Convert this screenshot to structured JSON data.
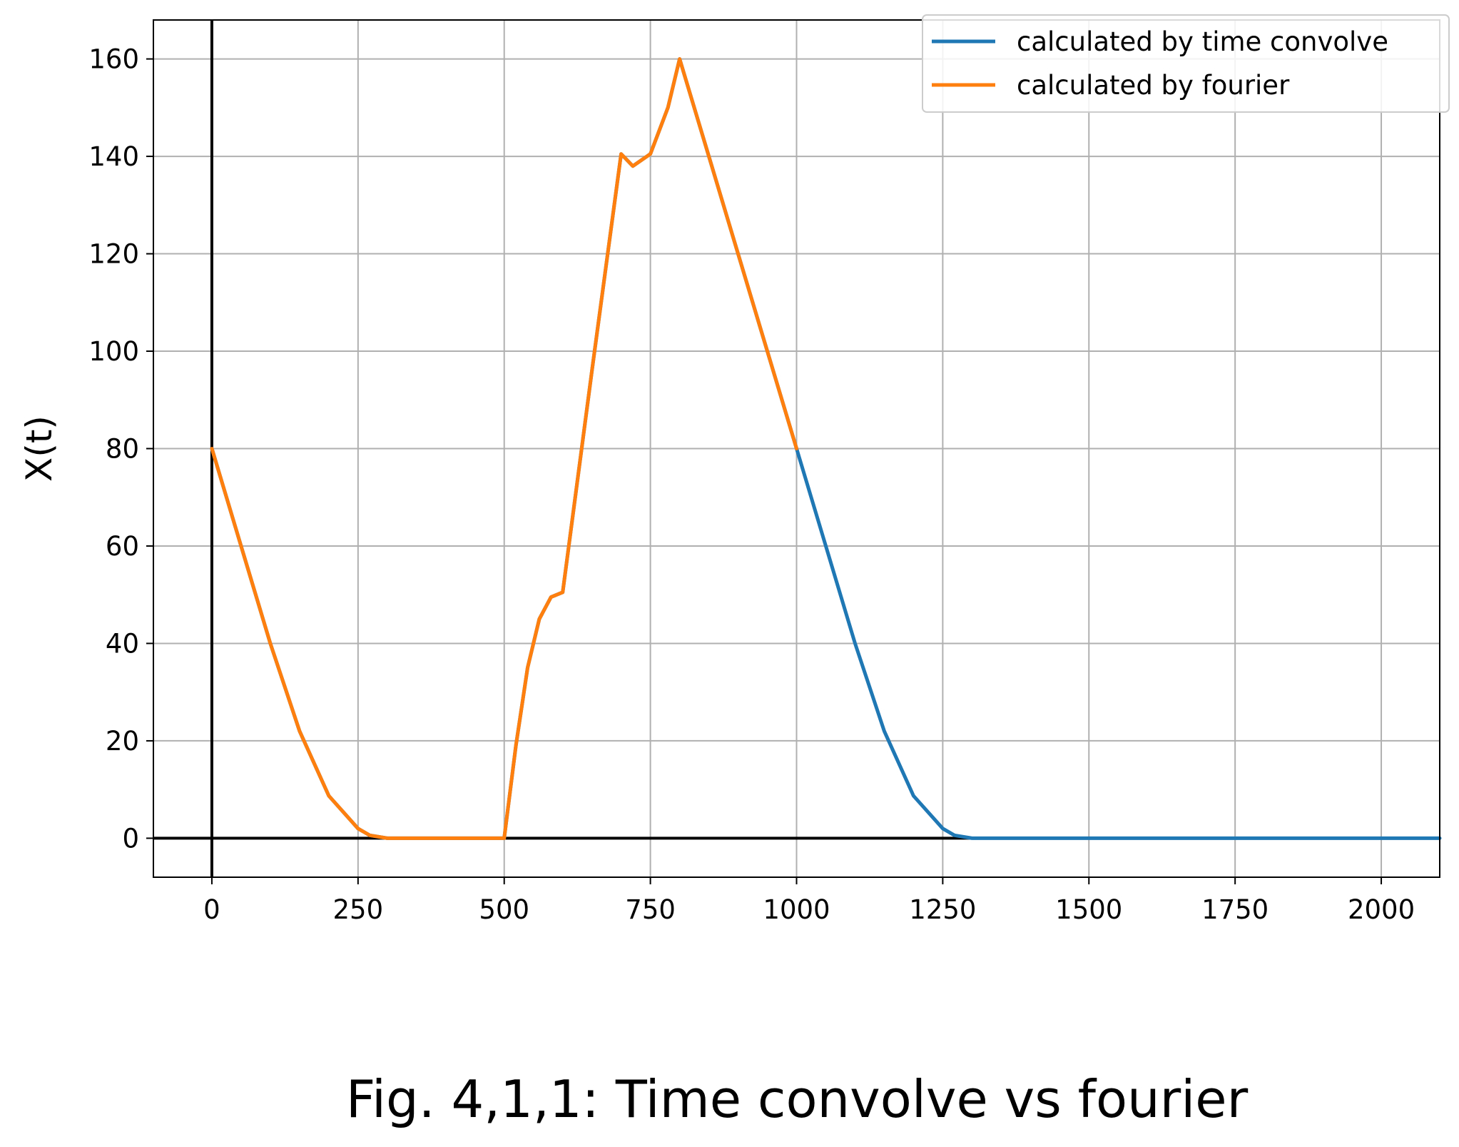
{
  "chart_data": {
    "type": "line",
    "title": "",
    "caption": "Fig. 4,1,1: Time convolve vs fourier",
    "xlabel": "",
    "ylabel": "X(t)",
    "xlim": [
      -100,
      2100
    ],
    "ylim": [
      -8,
      168
    ],
    "xticks": [
      0,
      250,
      500,
      750,
      1000,
      1250,
      1500,
      1750,
      2000
    ],
    "xtick_labels": [
      "0",
      "250",
      "500",
      "750",
      "1000",
      "1250",
      "1500",
      "1750",
      "2000"
    ],
    "yticks": [
      0,
      20,
      40,
      60,
      80,
      100,
      120,
      140,
      160
    ],
    "ytick_labels": [
      "0",
      "20",
      "40",
      "60",
      "80",
      "100",
      "120",
      "140",
      "160"
    ],
    "grid": true,
    "legend_position": "top-right",
    "reference_lines": {
      "x0": true,
      "y0": true
    },
    "series": [
      {
        "name": "calculated by time convolve",
        "color": "#1f77b4",
        "x": [
          0,
          50,
          100,
          150,
          200,
          250,
          270,
          300,
          400,
          500,
          520,
          540,
          560,
          580,
          600,
          650,
          700,
          720,
          750,
          780,
          800,
          850,
          900,
          950,
          1000,
          1050,
          1100,
          1150,
          1200,
          1250,
          1270,
          1300,
          1400,
          1500,
          1600,
          1700,
          1800,
          1900,
          2000,
          2100
        ],
        "y": [
          80,
          60,
          40,
          22,
          8.7,
          2,
          0.6,
          0,
          0,
          0,
          19,
          35,
          45,
          49.5,
          50.5,
          96,
          140.5,
          138,
          140.5,
          150,
          160,
          140,
          120,
          100,
          80,
          60,
          40,
          22,
          8.7,
          2,
          0.6,
          0,
          0,
          0,
          0,
          0,
          0,
          0,
          0,
          0
        ]
      },
      {
        "name": "calculated by fourier",
        "color": "#ff7f0e",
        "x": [
          0,
          50,
          100,
          150,
          200,
          250,
          270,
          300,
          400,
          500,
          520,
          540,
          560,
          580,
          600,
          650,
          700,
          720,
          750,
          780,
          800,
          850,
          900,
          950,
          1000
        ],
        "y": [
          80,
          60,
          40,
          22,
          8.7,
          2,
          0.6,
          0,
          0,
          0,
          19,
          35,
          45,
          49.5,
          50.5,
          96,
          140.5,
          138,
          140.5,
          150,
          160,
          140,
          120,
          100,
          80
        ]
      }
    ]
  }
}
